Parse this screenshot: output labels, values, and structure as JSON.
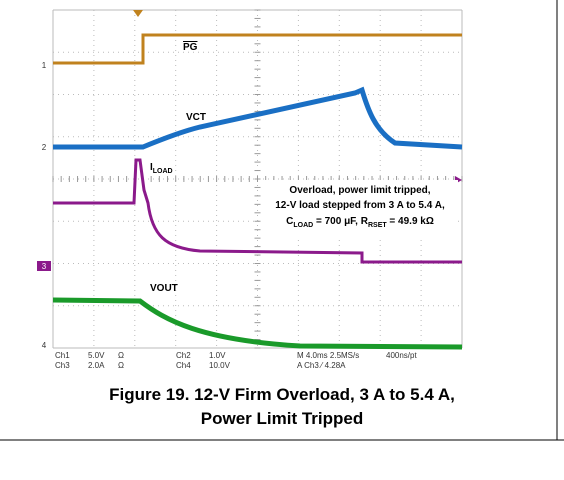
{
  "scope": {
    "trace_labels": {
      "pg": "PG",
      "vct": "VCT",
      "iload": [
        "I",
        "LOAD"
      ],
      "vout": "VOUT"
    },
    "channel_markers": [
      "1",
      "2",
      "3",
      "4"
    ],
    "annotation": {
      "line1": "Overload, power limit tripped,",
      "line2": "12-V load stepped from 3 A to 5.4 A,",
      "line3": [
        "C",
        "LOAD",
        " = 700 μF, R",
        "RSET",
        " = 49.9 kΩ"
      ]
    },
    "readout": {
      "ch1": "Ch1",
      "ch1_scale": "5.0V",
      "ch1_imp": "Ω",
      "ch3": "Ch3",
      "ch3_scale": "2.0A",
      "ch3_imp": "Ω",
      "ch2": "Ch2",
      "ch2_scale": "1.0V",
      "ch4": "Ch4",
      "ch4_scale": "10.0V",
      "timebase": "M 4.0ms 2.5MS/s",
      "record": "400ns/pt",
      "trigger": "A Ch3 ⁄ 4.28A"
    }
  },
  "caption": {
    "line1": "Figure 19. 12-V Firm Overload, 3 A to 5.4 A,",
    "line2": "Power Limit Tripped"
  }
}
